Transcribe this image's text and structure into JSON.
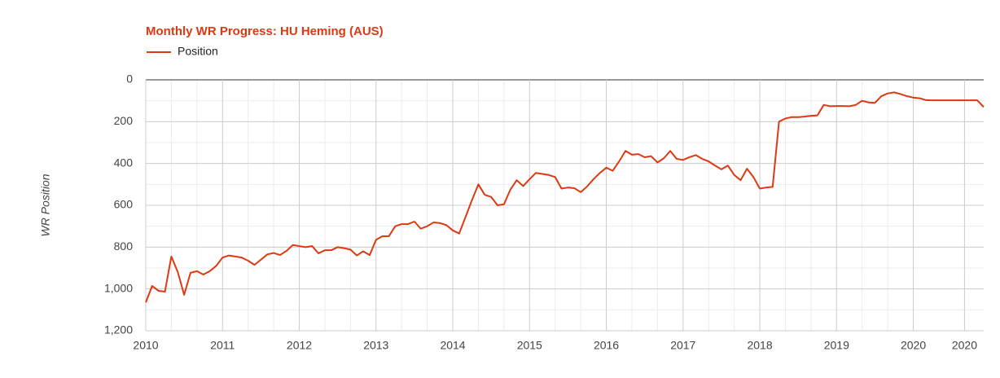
{
  "chart_data": {
    "type": "line",
    "title": "Monthly WR Progress: HU Heming (AUS)",
    "y_label": "WR Position",
    "x": [
      2010,
      2010.083,
      2010.167,
      2010.25,
      2010.333,
      2010.417,
      2010.5,
      2010.583,
      2010.667,
      2010.75,
      2010.833,
      2010.917,
      2011,
      2011.083,
      2011.167,
      2011.25,
      2011.333,
      2011.417,
      2011.5,
      2011.583,
      2011.667,
      2011.75,
      2011.833,
      2011.917,
      2012,
      2012.083,
      2012.167,
      2012.25,
      2012.333,
      2012.417,
      2012.5,
      2012.583,
      2012.667,
      2012.75,
      2012.833,
      2012.917,
      2013,
      2013.083,
      2013.167,
      2013.25,
      2013.333,
      2013.417,
      2013.5,
      2013.583,
      2013.667,
      2013.75,
      2013.833,
      2013.917,
      2014,
      2014.083,
      2014.167,
      2014.25,
      2014.333,
      2014.417,
      2014.5,
      2014.583,
      2014.667,
      2014.75,
      2014.833,
      2014.917,
      2015,
      2015.083,
      2015.167,
      2015.25,
      2015.333,
      2015.417,
      2015.5,
      2015.583,
      2015.667,
      2015.75,
      2015.833,
      2015.917,
      2016,
      2016.083,
      2016.167,
      2016.25,
      2016.333,
      2016.417,
      2016.5,
      2016.583,
      2016.667,
      2016.75,
      2016.833,
      2016.917,
      2017,
      2017.083,
      2017.167,
      2017.25,
      2017.333,
      2017.417,
      2017.5,
      2017.583,
      2017.667,
      2017.75,
      2017.833,
      2017.917,
      2018,
      2018.083,
      2018.167,
      2018.25,
      2018.333,
      2018.417,
      2018.5,
      2018.583,
      2018.667,
      2018.75,
      2018.833,
      2018.917,
      2019,
      2019.083,
      2019.167,
      2019.25,
      2019.333,
      2019.417,
      2019.5,
      2019.583,
      2019.667,
      2019.75,
      2019.833,
      2019.917,
      2020,
      2020.083,
      2020.167,
      2020.25,
      2020.333,
      2020.417,
      2020.5,
      2020.583,
      2020.667,
      2020.75,
      2020.833,
      2020.917
    ],
    "series": [
      {
        "name": "Position",
        "color": "#dc3912",
        "values": [
          1064,
          986,
          1009,
          1013,
          845,
          919,
          1028,
          923,
          915,
          931,
          915,
          890,
          850,
          840,
          845,
          850,
          865,
          885,
          860,
          835,
          828,
          838,
          818,
          790,
          795,
          800,
          795,
          830,
          815,
          815,
          800,
          805,
          812,
          840,
          820,
          838,
          765,
          748,
          748,
          700,
          690,
          690,
          678,
          712,
          700,
          682,
          685,
          695,
          720,
          735,
          655,
          575,
          500,
          550,
          560,
          600,
          595,
          525,
          480,
          508,
          475,
          445,
          450,
          455,
          465,
          520,
          515,
          518,
          537,
          510,
          475,
          445,
          420,
          435,
          390,
          340,
          358,
          355,
          370,
          365,
          395,
          375,
          340,
          378,
          383,
          370,
          360,
          378,
          390,
          410,
          428,
          410,
          455,
          480,
          425,
          465,
          520,
          515,
          512,
          200,
          185,
          178,
          178,
          176,
          172,
          170,
          120,
          126,
          125,
          125,
          126,
          120,
          100,
          108,
          110,
          78,
          65,
          60,
          68,
          78,
          85,
          88,
          97,
          98,
          98,
          98,
          98,
          98,
          98,
          98,
          98,
          130
        ]
      }
    ],
    "xlim": [
      2010,
      2020.917
    ],
    "xticks": [
      2010,
      2011,
      2012,
      2013,
      2014,
      2015,
      2016,
      2017,
      2018,
      2019,
      2020,
      {
        "value": 2020.667,
        "label": "2020"
      }
    ],
    "ylim": [
      0,
      1200
    ],
    "y_reversed": true,
    "yticks": [
      0,
      200,
      400,
      600,
      800,
      {
        "value": 1000,
        "label": "1,000"
      },
      {
        "value": 1200,
        "label": "1,200"
      }
    ],
    "grid": true,
    "legend": "top-left"
  }
}
